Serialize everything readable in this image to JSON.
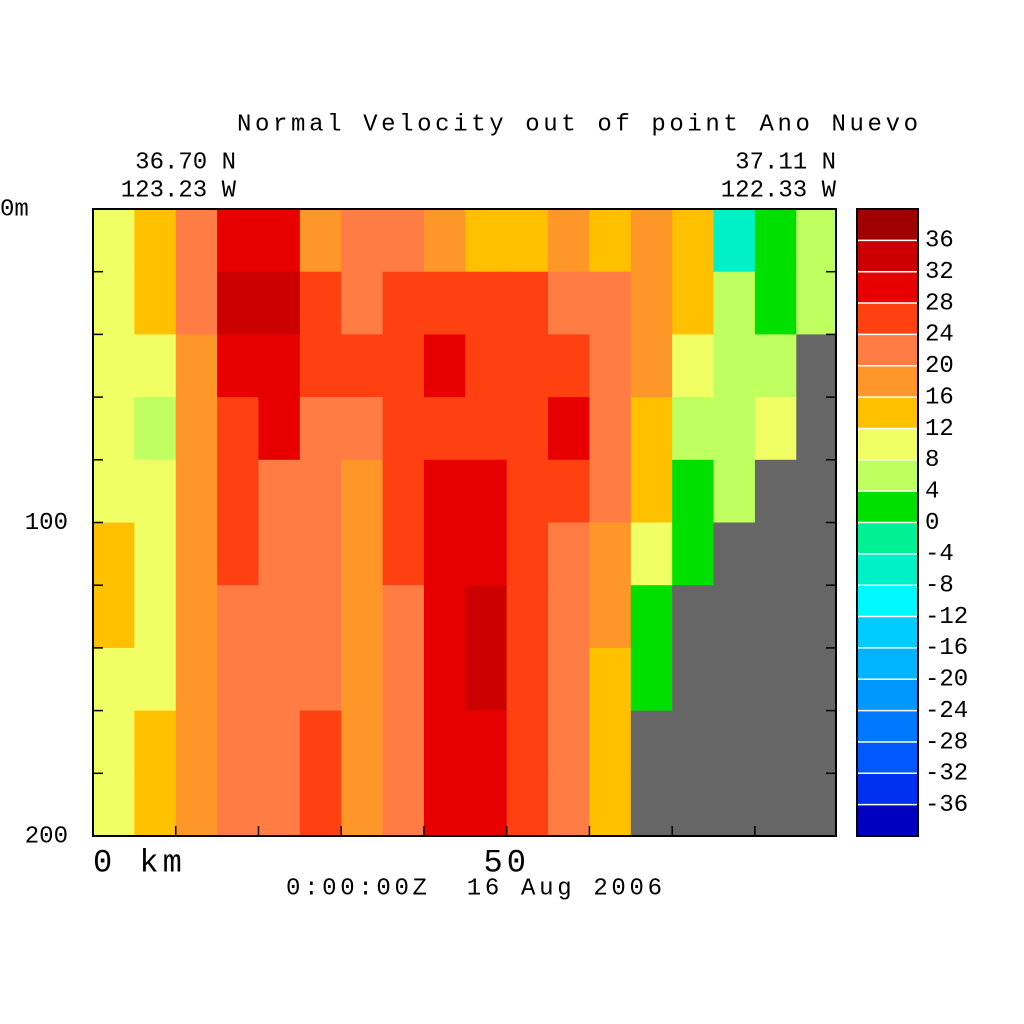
{
  "chart_data": {
    "type": "contour",
    "title": "Normal Velocity out of point Ano Nuevo",
    "left_corner": [
      "36.70 N",
      "123.23 W"
    ],
    "right_corner": [
      "37.11 N",
      "122.33 W"
    ],
    "time_label": "0:00:00Z  16 Aug 2006",
    "x": [
      0,
      5,
      10,
      15,
      20,
      25,
      30,
      35,
      40,
      45,
      50,
      55,
      60,
      65,
      70,
      75,
      80,
      85
    ],
    "depth": [
      0,
      20,
      40,
      60,
      80,
      100,
      120,
      140,
      160,
      180
    ],
    "z": [
      [
        10,
        14,
        22,
        30,
        30,
        18,
        22,
        22,
        18,
        14,
        14,
        18,
        14,
        18,
        14,
        -6,
        2,
        6
      ],
      [
        10,
        14,
        22,
        34,
        34,
        26,
        22,
        26,
        26,
        26,
        26,
        22,
        22,
        18,
        14,
        6,
        2,
        6
      ],
      [
        10,
        10,
        18,
        30,
        30,
        26,
        26,
        26,
        30,
        26,
        26,
        26,
        22,
        18,
        10,
        6,
        6,
        null
      ],
      [
        10,
        6,
        18,
        26,
        30,
        22,
        22,
        26,
        26,
        26,
        26,
        30,
        22,
        14,
        6,
        6,
        10,
        null
      ],
      [
        10,
        10,
        18,
        26,
        22,
        22,
        18,
        26,
        30,
        30,
        26,
        26,
        22,
        14,
        2,
        6,
        null,
        null
      ],
      [
        14,
        10,
        18,
        26,
        22,
        22,
        18,
        26,
        30,
        30,
        26,
        22,
        18,
        10,
        2,
        null,
        null,
        null
      ],
      [
        14,
        10,
        18,
        22,
        22,
        22,
        18,
        22,
        30,
        34,
        26,
        22,
        18,
        2,
        null,
        null,
        null,
        null
      ],
      [
        10,
        10,
        18,
        22,
        22,
        22,
        18,
        22,
        30,
        34,
        26,
        22,
        14,
        2,
        null,
        null,
        null,
        null
      ],
      [
        10,
        14,
        18,
        22,
        22,
        26,
        18,
        22,
        30,
        30,
        26,
        22,
        14,
        null,
        null,
        null,
        null,
        null
      ],
      [
        10,
        14,
        18,
        22,
        22,
        26,
        18,
        22,
        30,
        30,
        26,
        22,
        14,
        null,
        null,
        null,
        null,
        null
      ]
    ],
    "land_color": "#666666",
    "xlim": [
      0,
      89.8
    ],
    "ylim": [
      0,
      200
    ],
    "xticks": [
      0,
      10,
      20,
      30,
      40,
      50,
      60,
      70,
      80
    ],
    "xlabels": [
      {
        "value": 0,
        "label": "0 km"
      },
      50
    ],
    "yticks": [
      0,
      20,
      40,
      60,
      80,
      100,
      120,
      140,
      160,
      180,
      200
    ],
    "ylabels": [
      {
        "value": 0,
        "label": "0m"
      },
      100,
      200
    ],
    "levels": [
      -40,
      -36,
      -32,
      -28,
      -24,
      -20,
      -16,
      -12,
      -8,
      -4,
      0,
      4,
      8,
      12,
      16,
      20,
      24,
      28,
      32,
      36,
      40
    ],
    "colors": [
      "#0000c0",
      "#0030f0",
      "#0058ff",
      "#0078ff",
      "#0098ff",
      "#00b4ff",
      "#00ccff",
      "#00f8ff",
      "#00f0c8",
      "#00f094",
      "#00e000",
      "#c0ff60",
      "#f0ff64",
      "#ffc000",
      "#ff9628",
      "#ff7c44",
      "#ff4010",
      "#e80000",
      "#cc0000",
      "#a00000"
    ],
    "colorbar_ticks": [
      -36,
      -32,
      -28,
      -24,
      -20,
      -16,
      -12,
      -8,
      -4,
      0,
      4,
      8,
      12,
      16,
      20,
      24,
      28,
      32,
      36
    ]
  }
}
